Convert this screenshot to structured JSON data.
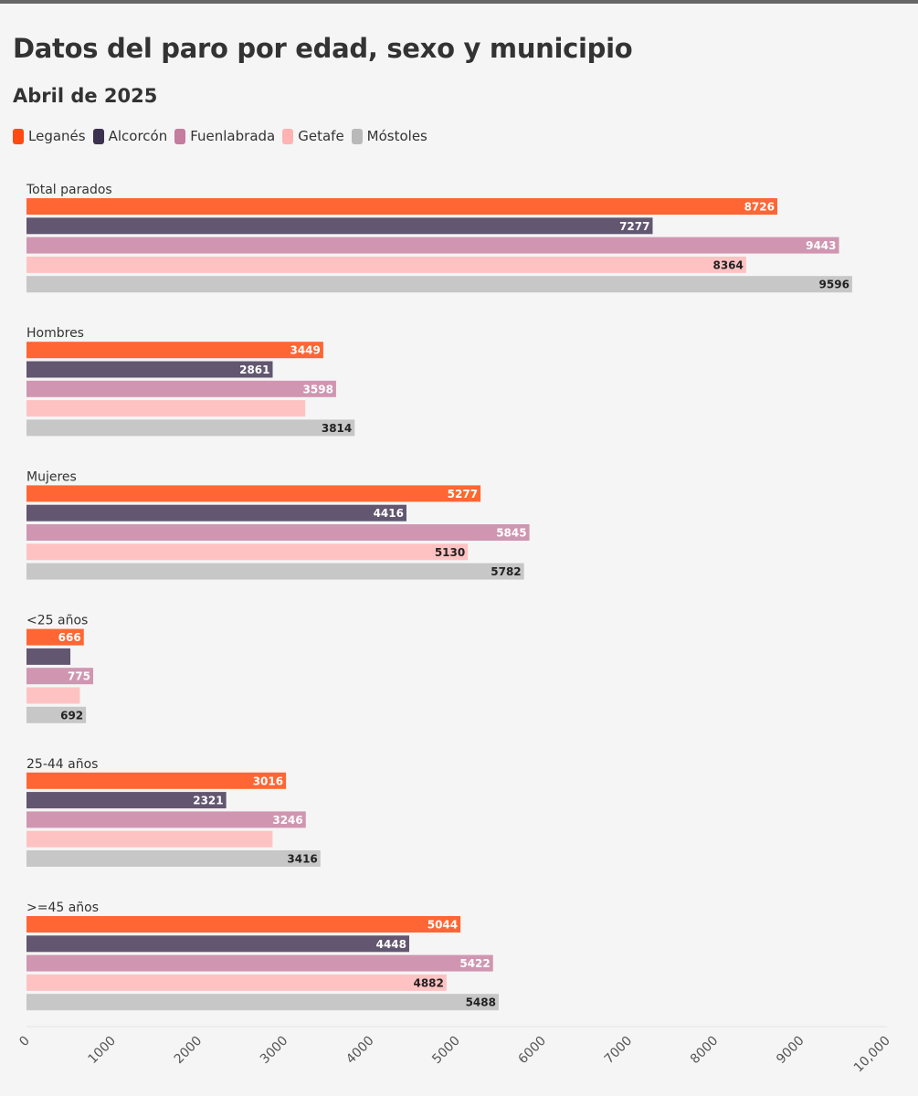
{
  "title": "Datos del paro por edad, sexo y municipio",
  "subtitle": "Abril de 2025",
  "legend": [
    {
      "name": "Leganés",
      "color": "#ff4a12"
    },
    {
      "name": "Alcorcón",
      "color": "#3d3150"
    },
    {
      "name": "Fuenlabrada",
      "color": "#c47c9f"
    },
    {
      "name": "Getafe",
      "color": "#ffb3b3"
    },
    {
      "name": "Móstoles",
      "color": "#b9b9b9"
    }
  ],
  "chart_data": {
    "type": "bar",
    "orientation": "horizontal",
    "title": "Datos del paro por edad, sexo y municipio",
    "subtitle": "Abril de 2025",
    "categories": [
      "Total parados",
      "Hombres",
      "Mujeres",
      "<25 años",
      "25-44 años",
      ">=45 años"
    ],
    "series": [
      {
        "name": "Leganés",
        "color": "#ff6633",
        "labelColor": "#ffffff",
        "values": [
          8726,
          3449,
          5277,
          666,
          3016,
          5044
        ],
        "labels": [
          "8726",
          "3449",
          "5277",
          "666",
          "3016",
          "5044"
        ]
      },
      {
        "name": "Alcorcón",
        "color": "#625670",
        "labelColor": "#ffffff",
        "values": [
          7277,
          2861,
          4416,
          510,
          2321,
          4448
        ],
        "labels": [
          "7277",
          "2861",
          "4416",
          "",
          "2321",
          "4448"
        ]
      },
      {
        "name": "Fuenlabrada",
        "color": "#d096b1",
        "labelColor": "#ffffff",
        "values": [
          9443,
          3598,
          5845,
          775,
          3246,
          5422
        ],
        "labels": [
          "9443",
          "3598",
          "5845",
          "775",
          "3246",
          "5422"
        ]
      },
      {
        "name": "Getafe",
        "color": "#ffc2c2",
        "labelColor": "#222222",
        "values": [
          8364,
          3240,
          5130,
          620,
          2860,
          4882
        ],
        "labels": [
          "8364",
          "",
          "5130",
          "",
          "",
          "4882"
        ]
      },
      {
        "name": "Móstoles",
        "color": "#c7c7c7",
        "labelColor": "#222222",
        "values": [
          9596,
          3814,
          5782,
          692,
          3416,
          5488
        ],
        "labels": [
          "9596",
          "3814",
          "5782",
          "692",
          "3416",
          "5488"
        ]
      }
    ],
    "xlim": [
      0,
      10000
    ],
    "xticks": [
      "0",
      "1000",
      "2000",
      "3000",
      "4000",
      "5000",
      "6000",
      "7000",
      "8000",
      "9000",
      "10,000"
    ],
    "grid": false,
    "legend_position": "top-left"
  }
}
